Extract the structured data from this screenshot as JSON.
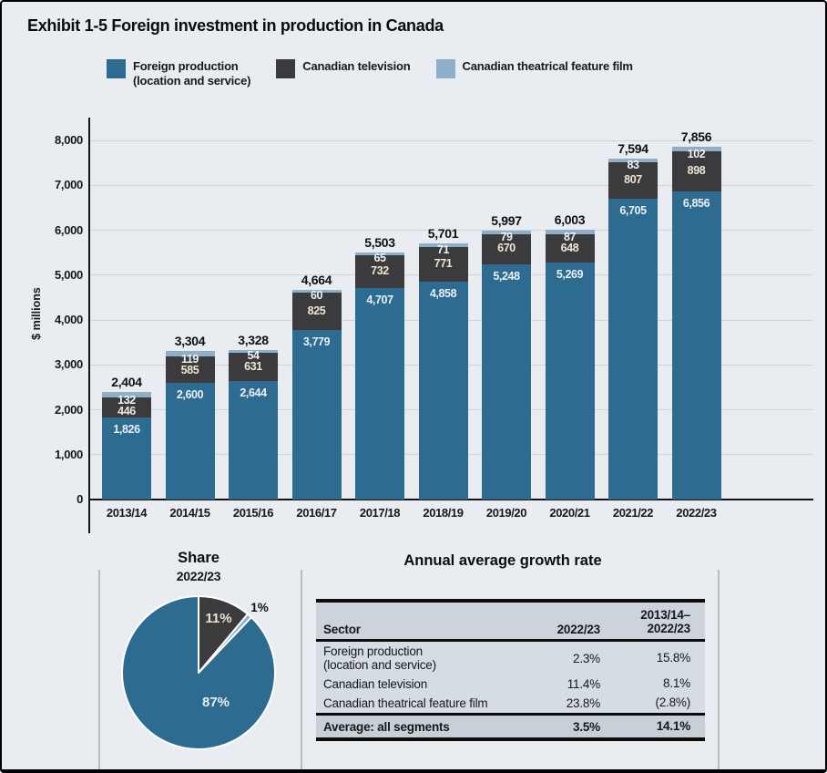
{
  "exhibit_title": "Exhibit 1-5  Foreign investment in production in Canada",
  "legend": [
    {
      "label": "Foreign production\n(location and service)",
      "color": "#2d6c90"
    },
    {
      "label": "Canadian television",
      "color": "#3b3b3d"
    },
    {
      "label": "Canadian theatrical feature film",
      "color": "#8fafc8"
    }
  ],
  "chart_data": [
    {
      "type": "bar",
      "stacked": true,
      "title": "Foreign investment in production in Canada",
      "ylabel": "$ millions",
      "ylim": [
        0,
        8000
      ],
      "ytick_step": 1000,
      "yticks": [
        "0",
        "1,000",
        "2,000",
        "3,000",
        "4,000",
        "5,000",
        "6,000",
        "7,000",
        "8,000"
      ],
      "grid": true,
      "categories": [
        "2013/14",
        "2014/15",
        "2015/16",
        "2016/17",
        "2017/18",
        "2018/19",
        "2019/20",
        "2020/21",
        "2021/22",
        "2022/23"
      ],
      "series": [
        {
          "name": "Foreign production (location and service)",
          "color": "#2d6c90",
          "values": [
            1826,
            2600,
            2644,
            3779,
            4707,
            4858,
            5248,
            5269,
            6705,
            6856
          ]
        },
        {
          "name": "Canadian television",
          "color": "#3b3b3d",
          "values": [
            446,
            585,
            631,
            825,
            732,
            771,
            670,
            648,
            807,
            898
          ]
        },
        {
          "name": "Canadian theatrical feature film",
          "color": "#8fafc8",
          "values": [
            132,
            119,
            54,
            60,
            65,
            71,
            79,
            87,
            83,
            102
          ]
        }
      ],
      "totals": [
        2404,
        3304,
        3328,
        4664,
        5503,
        5701,
        5997,
        6003,
        7594,
        7856
      ]
    },
    {
      "type": "pie",
      "title": "Share",
      "subtitle": "2022/23",
      "start_angle_deg": 0,
      "slices": [
        {
          "label": "Canadian television",
          "value": 11,
          "display": "11%",
          "color": "#3b3b3d"
        },
        {
          "label": "Canadian theatrical feature film",
          "value": 1,
          "display": "1%",
          "color": "#8fafc8"
        },
        {
          "label": "Foreign production (location and service)",
          "value": 87,
          "display": "87%",
          "color": "#2d6c90"
        }
      ]
    }
  ],
  "growth_table": {
    "title": "Annual average growth rate",
    "columns": [
      "Sector",
      "2022/23",
      "2013/14–\n2022/23"
    ],
    "rows": [
      [
        "Foreign production\n(location and service)",
        "2.3%",
        "15.8%"
      ],
      [
        "Canadian television",
        "11.4%",
        "8.1%"
      ],
      [
        "Canadian theatrical feature film",
        "23.8%",
        "(2.8%)"
      ]
    ],
    "footer": [
      "Average: all segments",
      "3.5%",
      "14.1%"
    ]
  },
  "colors": {
    "background": "#e9edf2",
    "gridline": "#cfd4da",
    "axis": "#141414",
    "foreign_production": "#2d6c90",
    "canadian_television": "#3b3b3d",
    "theatrical_film": "#8fafc8",
    "label_on_dark": "#efe6d2",
    "label_on_blue": "#eaf0f5"
  }
}
